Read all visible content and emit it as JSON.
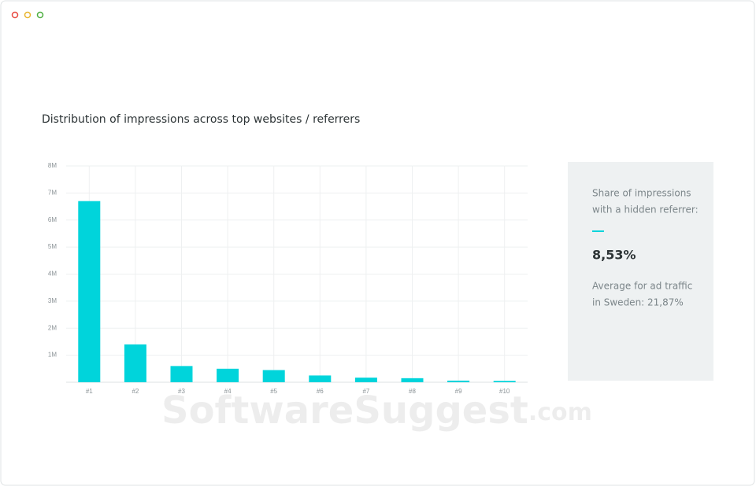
{
  "chart_data": {
    "type": "bar",
    "title": "Distribution of impressions across top websites / referrers",
    "categories": [
      "#1",
      "#2",
      "#3",
      "#4",
      "#5",
      "#6",
      "#7",
      "#8",
      "#9",
      "#10"
    ],
    "values": [
      6700000,
      1400000,
      600000,
      500000,
      450000,
      250000,
      170000,
      150000,
      60000,
      50000
    ],
    "color": "#00d4db",
    "ylim": [
      0,
      8000000
    ],
    "yticks": [
      {
        "value": 1000000,
        "label": "1M"
      },
      {
        "value": 2000000,
        "label": "2M"
      },
      {
        "value": 3000000,
        "label": "3M"
      },
      {
        "value": 4000000,
        "label": "4M"
      },
      {
        "value": 5000000,
        "label": "5M"
      },
      {
        "value": 6000000,
        "label": "6M"
      },
      {
        "value": 7000000,
        "label": "7M"
      },
      {
        "value": 8000000,
        "label": "8M"
      }
    ],
    "grid": true
  },
  "panel": {
    "label_line1": "Share of impressions",
    "label_line2": "with a hidden referrer:",
    "value": "8,53%",
    "note_line1": "Average for ad traffic",
    "note_line2": "in Sweden: 21,87%"
  },
  "watermark": {
    "brand": "SoftwareSuggest",
    "suffix": ".com"
  }
}
